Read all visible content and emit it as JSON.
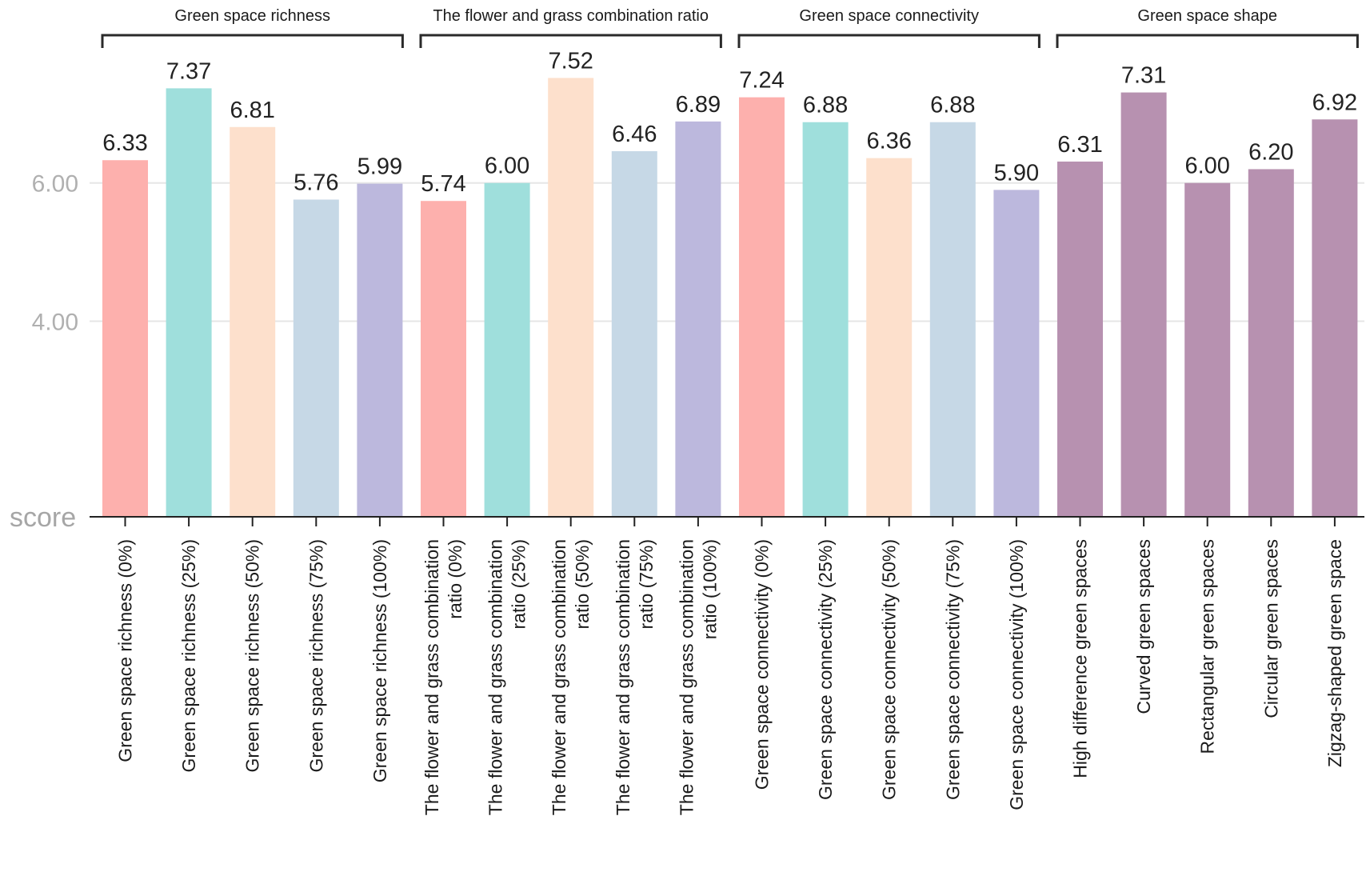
{
  "chart_data": {
    "type": "bar",
    "ylabel": "score",
    "y_ticks": [
      "4.00",
      "6.00"
    ],
    "ylim": [
      1.17,
      7.9
    ],
    "grid": "horizontal",
    "groups": [
      {
        "title": "Green space richness",
        "bars": [
          {
            "label": "Green space richness (0%)",
            "value": 6.33,
            "value_label": "6.33",
            "color": "#fdb0ad"
          },
          {
            "label": "Green space richness (25%)",
            "value": 7.37,
            "value_label": "7.37",
            "color": "#9fdfdc"
          },
          {
            "label": "Green space richness (50%)",
            "value": 6.81,
            "value_label": "6.81",
            "color": "#fde0cc"
          },
          {
            "label": "Green space richness (75%)",
            "value": 5.76,
            "value_label": "5.76",
            "color": "#c6d8e6"
          },
          {
            "label": "Green space richness (100%)",
            "value": 5.99,
            "value_label": "5.99",
            "color": "#bcb8dd"
          }
        ]
      },
      {
        "title": "The flower and grass combination ratio",
        "bars": [
          {
            "label": [
              "The flower and grass combination",
              "ratio (0%)"
            ],
            "value": 5.74,
            "value_label": "5.74",
            "color": "#fdb0ad"
          },
          {
            "label": [
              "The flower and grass combination",
              "ratio (25%)"
            ],
            "value": 6.0,
            "value_label": "6.00",
            "color": "#9fdfdc"
          },
          {
            "label": [
              "The flower and grass combination",
              "ratio (50%)"
            ],
            "value": 7.52,
            "value_label": "7.52",
            "color": "#fde0cc"
          },
          {
            "label": [
              "The flower and grass combination",
              "ratio (75%)"
            ],
            "value": 6.46,
            "value_label": "6.46",
            "color": "#c6d8e6"
          },
          {
            "label": [
              "The flower and grass combination",
              "ratio (100%)"
            ],
            "value": 6.89,
            "value_label": "6.89",
            "color": "#bcb8dd"
          }
        ]
      },
      {
        "title": "Green space connectivity",
        "bars": [
          {
            "label": "Green space connectivity (0%)",
            "value": 7.24,
            "value_label": "7.24",
            "color": "#fdb0ad"
          },
          {
            "label": "Green space connectivity (25%)",
            "value": 6.88,
            "value_label": "6.88",
            "color": "#9fdfdc"
          },
          {
            "label": "Green space connectivity (50%)",
            "value": 6.36,
            "value_label": "6.36",
            "color": "#fde0cc"
          },
          {
            "label": "Green space connectivity (75%)",
            "value": 6.88,
            "value_label": "6.88",
            "color": "#c6d8e6"
          },
          {
            "label": "Green space connectivity (100%)",
            "value": 5.9,
            "value_label": "5.90",
            "color": "#bcb8dd"
          }
        ]
      },
      {
        "title": "Green space shape",
        "bars": [
          {
            "label": "High difference green spaces",
            "value": 6.31,
            "value_label": "6.31",
            "color": "#b791b0"
          },
          {
            "label": "Curved green spaces",
            "value": 7.31,
            "value_label": "7.31",
            "color": "#b791b0"
          },
          {
            "label": "Rectangular green spaces",
            "value": 6.0,
            "value_label": "6.00",
            "color": "#b791b0"
          },
          {
            "label": "Circular green spaces",
            "value": 6.2,
            "value_label": "6.20",
            "color": "#b791b0"
          },
          {
            "label": "Zigzag-shaped green space",
            "value": 6.92,
            "value_label": "6.92",
            "color": "#b791b0"
          }
        ]
      }
    ]
  }
}
